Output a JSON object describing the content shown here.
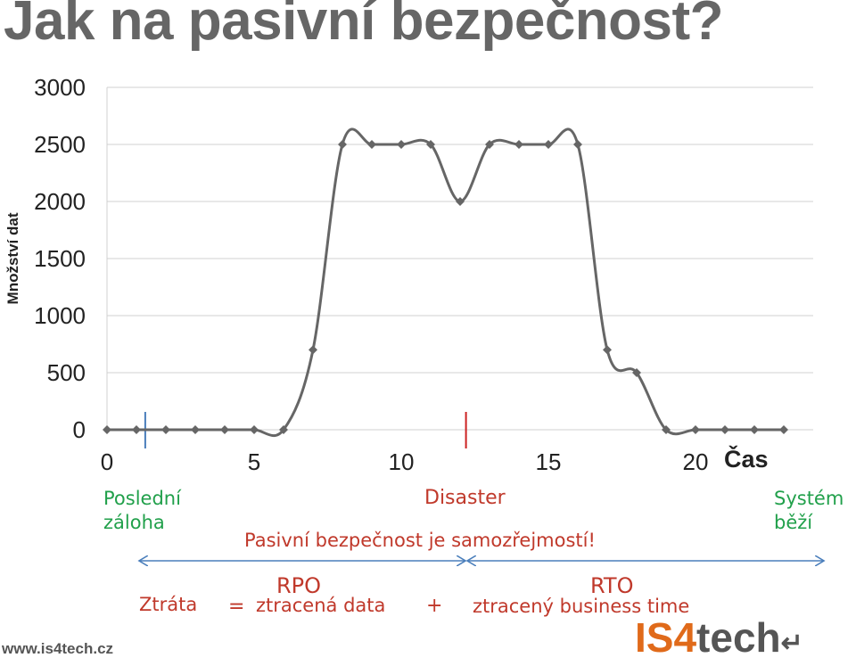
{
  "slide": {
    "title": "Jak na pasivní bezpečnost?",
    "url": "www.is4tech.cz",
    "logo_is4": "IS4",
    "logo_tech": "tech"
  },
  "annotations": {
    "last_backup": [
      "Poslední",
      "záloha"
    ],
    "disaster": "Disaster",
    "system_running": [
      "Systém",
      "běží"
    ],
    "passive_security": "Pasivní bezpečnost je samozřejmostí!",
    "loss": "Ztráta",
    "equals": "=",
    "rpo": "RPO",
    "rpo_desc": "ztracená data",
    "plus": "+",
    "rto": "RTO",
    "rto_desc": "ztracený business time"
  },
  "colors": {
    "line": "#666666",
    "grid": "#d0d0d0",
    "backup_marker": "#4a7ebb",
    "disaster_marker": "#cc2222",
    "arrows": "#4a7ebb",
    "green_text": "#21a04b",
    "red_text": "#c0392b",
    "logo_orange": "#e06a1a"
  },
  "chart_data": {
    "type": "line",
    "ylabel": "Množství dat",
    "xlabel": "Čas",
    "xlim": [
      0,
      24
    ],
    "ylim": [
      0,
      3000
    ],
    "xticks": [
      0,
      5,
      10,
      15,
      20
    ],
    "yticks": [
      0,
      500,
      1000,
      1500,
      2000,
      2500,
      3000
    ],
    "grid": true,
    "series": [
      {
        "x": [
          0,
          1,
          2,
          3,
          4,
          5,
          6,
          7,
          8,
          9,
          10,
          11,
          12,
          13,
          14,
          15,
          16,
          17,
          18,
          19,
          20,
          21,
          22,
          23
        ],
        "values": [
          0,
          0,
          0,
          0,
          0,
          0,
          0,
          700,
          2500,
          2500,
          2500,
          2500,
          2000,
          2500,
          2500,
          2500,
          2500,
          700,
          500,
          0,
          0,
          0,
          0,
          0
        ]
      }
    ],
    "markers": {
      "last_backup_x": 1.3,
      "disaster_x": 12.2
    }
  }
}
